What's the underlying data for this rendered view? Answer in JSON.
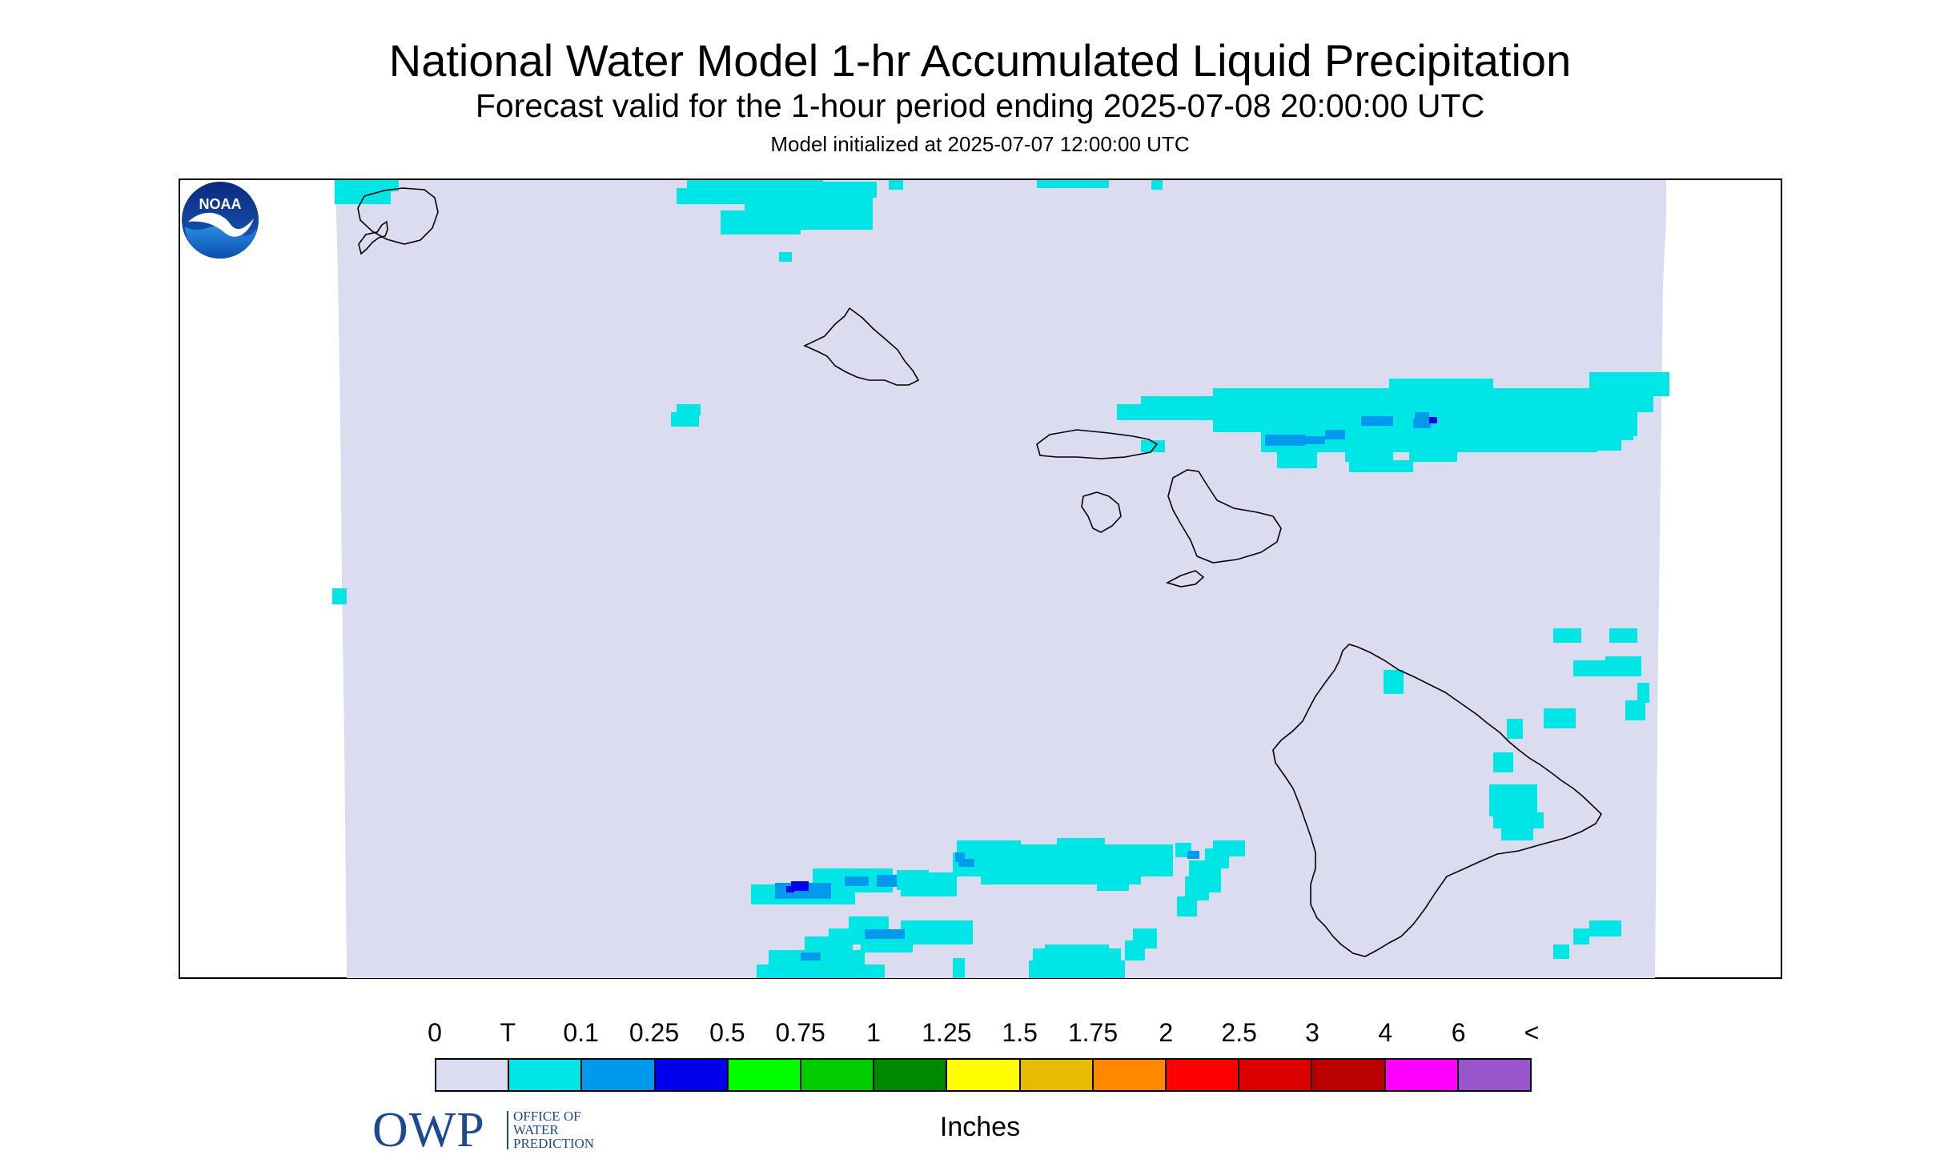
{
  "title": "National Water Model 1-hr Accumulated Liquid Precipitation",
  "subtitle": "Forecast valid for the 1-hour period ending 2025-07-08 20:00:00 UTC",
  "init_text": "Model initialized at 2025-07-07 12:00:00 UTC",
  "logos": {
    "owp_abbrev": "OWP",
    "owp_line1": "OFFICE OF",
    "owp_line2": "WATER",
    "owp_line3": "PREDICTION",
    "noaa": "NOAA"
  },
  "legend": {
    "labels": [
      "0",
      "T",
      "0.1",
      "0.25",
      "0.5",
      "0.75",
      "1",
      "1.25",
      "1.5",
      "1.75",
      "2",
      "2.5",
      "3",
      "4",
      "6",
      "<"
    ],
    "colors": [
      "#dcdcf0",
      "#00e6e6",
      "#0099ee",
      "#0000ee",
      "#00ff00",
      "#00cc00",
      "#008800",
      "#ffff00",
      "#e6bb00",
      "#ff8800",
      "#ff0000",
      "#dd0000",
      "#bb0000",
      "#ff00ff",
      "#9955cc"
    ],
    "units": "Inches"
  },
  "map_colors": {
    "domain_fill": "#dcdcf0",
    "trace": "#00e6e6",
    "light_blue": "#0099ee",
    "blue": "#0000ee",
    "coastline": "#000000"
  }
}
